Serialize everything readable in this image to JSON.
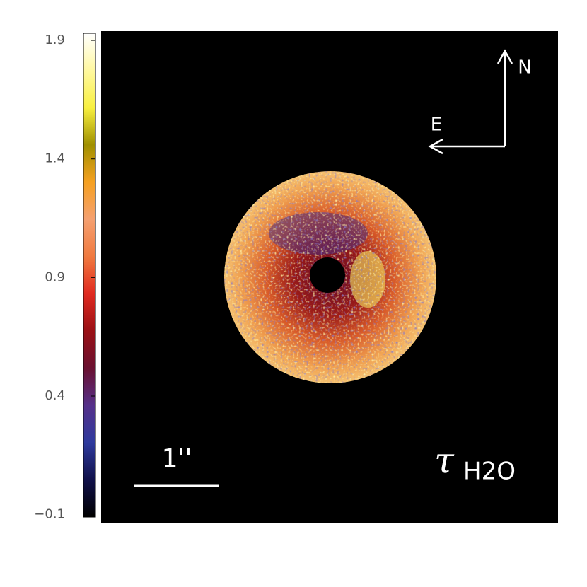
{
  "chart_data": {
    "type": "image",
    "colorbar": {
      "clim": [
        -0.11,
        1.93
      ],
      "ticks": [
        1.9,
        1.4,
        0.9,
        0.4,
        {
          "value": -0.1,
          "label": "−0.1"
        }
      ],
      "colormap": [
        "#000000",
        "#10104a",
        "#2e3a9e",
        "#55308a",
        "#6a1030",
        "#9a1015",
        "#e02a20",
        "#f07a40",
        "#f5a070",
        "#f5a020",
        "#a09000",
        "#f8f040",
        "#fff8a0",
        "#ffffff"
      ]
    },
    "scale_label": "1''",
    "quantity": {
      "symbol": "τ",
      "subscript": "H2O"
    },
    "compass": {
      "north": "N",
      "east": "E"
    }
  }
}
